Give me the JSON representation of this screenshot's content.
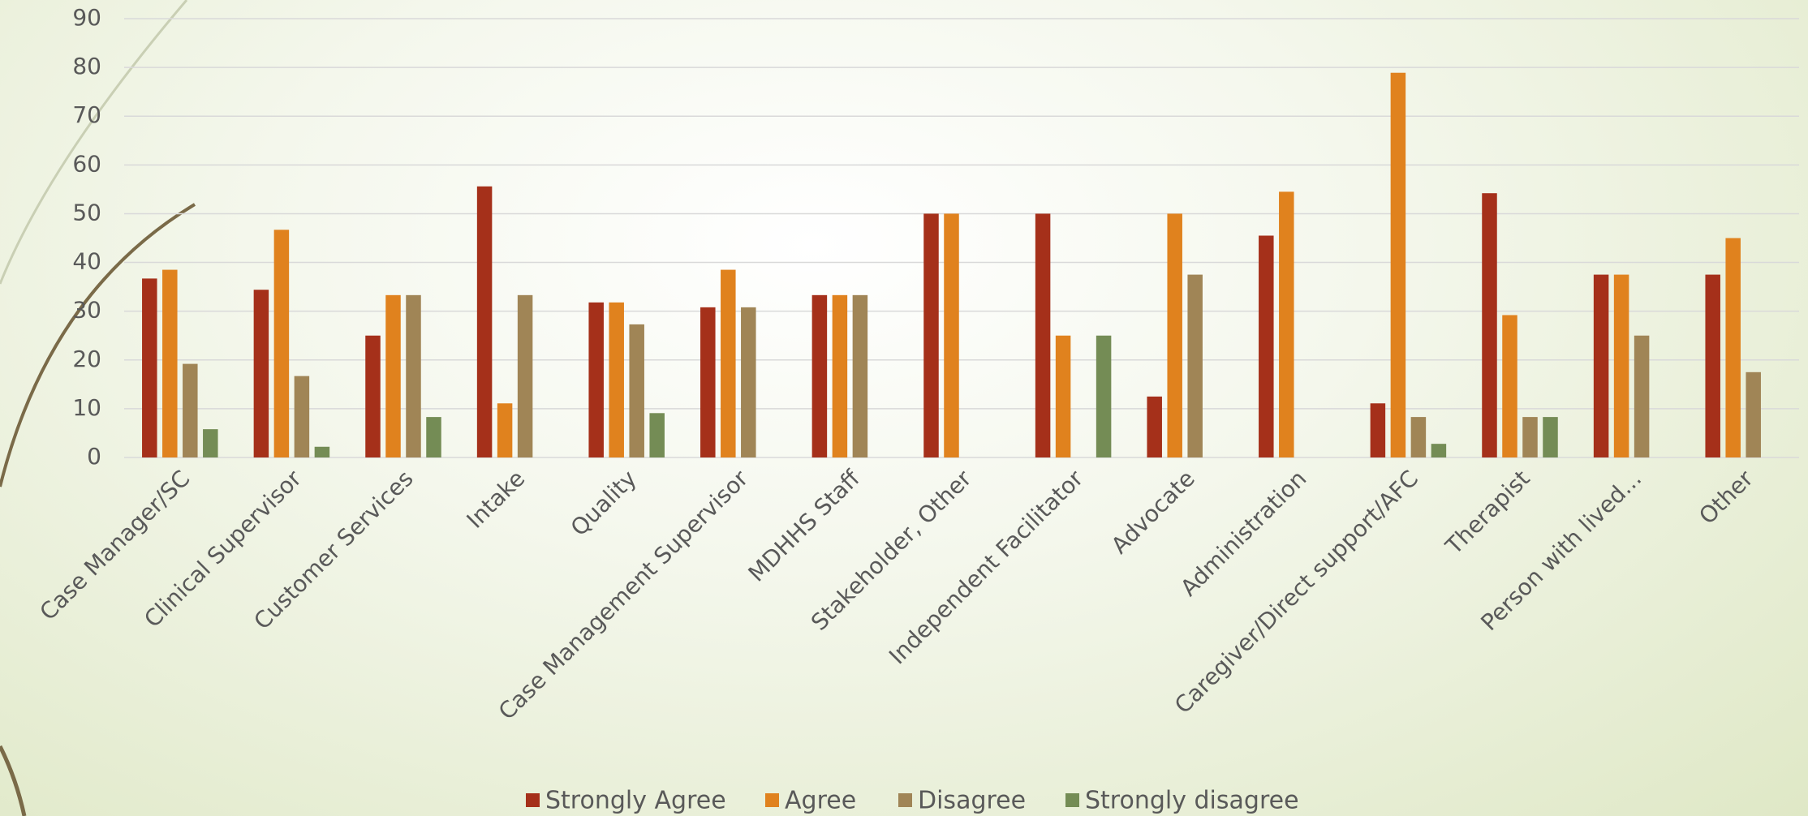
{
  "chart_data": {
    "type": "bar",
    "categories": [
      "Case Manager/SC",
      "Clinical Supervisor",
      "Customer Services",
      "Intake",
      "Quality",
      "Case Management Supervisor",
      "MDHHS Staff",
      "Stakeholder, Other",
      "Independent Facilitator",
      "Advocate",
      "Administration",
      "Caregiver/Direct support/AFC",
      "Therapist",
      "Person with lived...",
      "Other"
    ],
    "series": [
      {
        "name": "Strongly Agree",
        "color": "#a5301a",
        "values": [
          36.7,
          34.4,
          25,
          55.6,
          31.8,
          30.8,
          33.3,
          50,
          50,
          12.5,
          45.5,
          11.1,
          54.2,
          37.5,
          37.5
        ]
      },
      {
        "name": "Agree",
        "color": "#e0821e",
        "values": [
          38.5,
          46.7,
          33.3,
          11.1,
          31.8,
          38.5,
          33.3,
          50,
          25,
          50,
          54.5,
          78.9,
          29.2,
          37.5,
          45
        ]
      },
      {
        "name": "Disagree",
        "color": "#a08556",
        "values": [
          19.2,
          16.7,
          33.3,
          33.3,
          27.3,
          30.8,
          33.3,
          0,
          0,
          37.5,
          0,
          8.3,
          8.3,
          25,
          17.5
        ]
      },
      {
        "name": "Strongly disagree",
        "color": "#748c55",
        "values": [
          5.8,
          2.2,
          8.3,
          0,
          9.1,
          0,
          0,
          0,
          25,
          0,
          0,
          2.8,
          8.3,
          0,
          0
        ]
      }
    ],
    "ylim": [
      0,
      90
    ],
    "yticks": [
      0,
      10,
      20,
      30,
      40,
      50,
      60,
      70,
      80,
      90
    ],
    "grid": true,
    "legend": "bottom"
  }
}
